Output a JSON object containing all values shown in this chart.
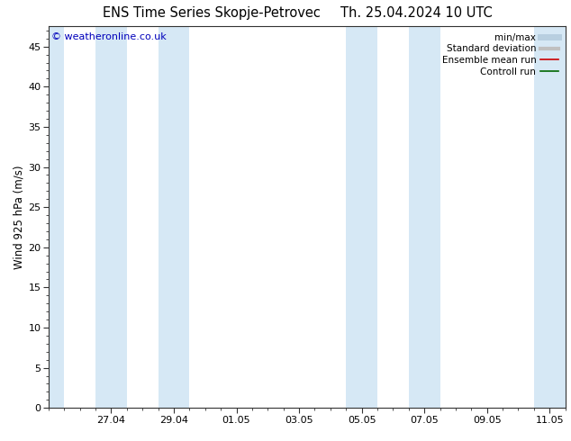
{
  "title_left": "ENS Time Series Skopje-Petrovec",
  "title_right": "Th. 25.04.2024 10 UTC",
  "ylabel": "Wind 925 hPa (m/s)",
  "copyright": "© weatheronline.co.uk",
  "bg_color": "#ffffff",
  "plot_bg_color": "#ffffff",
  "shaded_band_color": "#d6e8f5",
  "yticks": [
    0,
    5,
    10,
    15,
    20,
    25,
    30,
    35,
    40,
    45
  ],
  "ylim": [
    0,
    47.5
  ],
  "xlim": [
    0,
    16.5
  ],
  "xtick_labels": [
    "27.04",
    "29.04",
    "01.05",
    "03.05",
    "05.05",
    "07.05",
    "09.05",
    "11.05"
  ],
  "xtick_positions": [
    2,
    4,
    6,
    8,
    10,
    12,
    14,
    16
  ],
  "shaded_bands": [
    [
      0.0,
      0.5
    ],
    [
      1.5,
      2.5
    ],
    [
      3.5,
      4.5
    ],
    [
      9.5,
      10.5
    ],
    [
      11.5,
      12.5
    ],
    [
      15.5,
      16.5
    ]
  ],
  "legend_items": [
    {
      "label": "min/max",
      "color": "#b8cfe0",
      "lw": 5,
      "ls": "-"
    },
    {
      "label": "Standard deviation",
      "color": "#c0c0c0",
      "lw": 3,
      "ls": "-"
    },
    {
      "label": "Ensemble mean run",
      "color": "#cc0000",
      "lw": 1.2,
      "ls": "-"
    },
    {
      "label": "Controll run",
      "color": "#006600",
      "lw": 1.2,
      "ls": "-"
    }
  ],
  "title_fontsize": 10.5,
  "axis_label_fontsize": 8.5,
  "tick_fontsize": 8,
  "copyright_fontsize": 8,
  "copyright_color": "#0000bb",
  "legend_fontsize": 7.5
}
